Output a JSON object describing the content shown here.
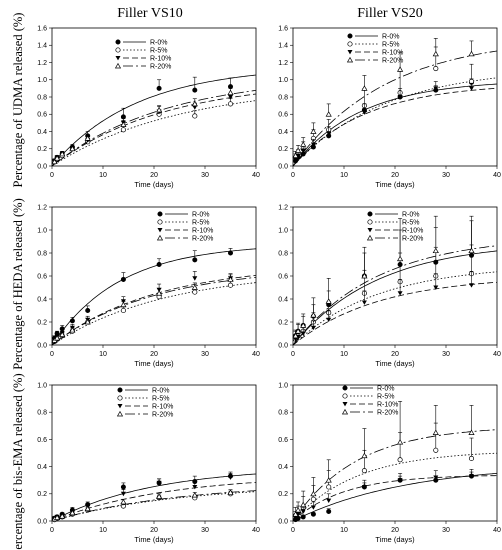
{
  "column_titles": [
    "Filler VS10",
    "Filler VS20"
  ],
  "row_ylabels": [
    "Percentage of UDMA released (%)",
    "Percentage of HEDA released (%)",
    "Percentage of bis-EMA released (%)"
  ],
  "series_style": [
    {
      "name": "R-0%",
      "marker": "filled-circle",
      "dash": ""
    },
    {
      "name": "R-5%",
      "marker": "open-circle",
      "dash": "1.5,2"
    },
    {
      "name": "R-10%",
      "marker": "filled-triangle-down",
      "dash": "6,3"
    },
    {
      "name": "R-20%",
      "marker": "open-triangle-up",
      "dash": "10,3,2,3"
    }
  ],
  "chart_data": [
    {
      "type": "scatter",
      "panel": "UDMA / Filler VS10",
      "xlabel": "Time (days)",
      "xlim": [
        0,
        40
      ],
      "ylim": [
        0,
        1.6
      ],
      "xticks": [
        0,
        10,
        20,
        30,
        40
      ],
      "yticks": [
        0.0,
        0.2,
        0.4,
        0.6,
        0.8,
        1.0,
        1.2,
        1.4,
        1.6
      ],
      "x": [
        0.5,
        1,
        2,
        4,
        7,
        14,
        21,
        28,
        35
      ],
      "series": [
        {
          "name": "R-0%",
          "values": [
            0.06,
            0.1,
            0.14,
            0.22,
            0.35,
            0.57,
            0.9,
            0.88,
            0.92
          ],
          "errors": [
            0.02,
            0.02,
            0.03,
            0.03,
            0.05,
            0.1,
            0.1,
            0.15,
            0.1
          ],
          "fit": [
            1.16,
            0.06
          ]
        },
        {
          "name": "R-5%",
          "values": [
            0.05,
            0.08,
            0.12,
            0.2,
            0.28,
            0.42,
            0.6,
            0.58,
            0.72
          ],
          "errors": [
            0.02,
            0.02,
            0.02,
            0.03,
            0.04,
            0.06,
            0.05,
            0.06,
            0.06
          ],
          "fit": [
            0.95,
            0.04
          ]
        },
        {
          "name": "R-10%",
          "values": [
            0.06,
            0.1,
            0.14,
            0.2,
            0.3,
            0.5,
            0.63,
            0.68,
            0.8
          ],
          "errors": [
            0.02,
            0.02,
            0.03,
            0.03,
            0.04,
            0.05,
            0.06,
            0.05,
            0.04
          ],
          "fit": [
            1.0,
            0.045
          ]
        },
        {
          "name": "R-20%",
          "values": [
            0.05,
            0.09,
            0.14,
            0.2,
            0.32,
            0.48,
            0.65,
            0.72,
            0.85
          ],
          "errors": [
            0.02,
            0.02,
            0.03,
            0.03,
            0.04,
            0.05,
            0.05,
            0.06,
            0.05
          ],
          "fit": [
            1.05,
            0.045
          ]
        }
      ]
    },
    {
      "type": "scatter",
      "panel": "UDMA / Filler VS20",
      "xlabel": "Time (days)",
      "xlim": [
        0,
        40
      ],
      "ylim": [
        0,
        1.6
      ],
      "xticks": [
        0,
        10,
        20,
        30,
        40
      ],
      "yticks": [
        0.0,
        0.2,
        0.4,
        0.6,
        0.8,
        1.0,
        1.2,
        1.4,
        1.6
      ],
      "x": [
        0.5,
        1,
        2,
        4,
        7,
        14,
        21,
        28,
        35
      ],
      "series": [
        {
          "name": "R-0%",
          "values": [
            0.06,
            0.1,
            0.14,
            0.22,
            0.35,
            0.65,
            0.8,
            0.88,
            0.97
          ],
          "errors": [
            0.03,
            0.03,
            0.04,
            0.05,
            0.06,
            0.07,
            0.05,
            0.05,
            0.04
          ],
          "fit": [
            1.0,
            0.075
          ]
        },
        {
          "name": "R-5%",
          "values": [
            0.1,
            0.14,
            0.2,
            0.32,
            0.42,
            0.7,
            0.85,
            1.13,
            0.98
          ],
          "errors": [
            0.04,
            0.05,
            0.08,
            0.1,
            0.12,
            0.2,
            0.25,
            0.25,
            0.2
          ],
          "fit": [
            1.15,
            0.055
          ]
        },
        {
          "name": "R-10%",
          "values": [
            0.08,
            0.12,
            0.18,
            0.25,
            0.38,
            0.62,
            0.8,
            0.9,
            0.9
          ],
          "errors": [
            0.03,
            0.04,
            0.05,
            0.06,
            0.08,
            0.1,
            0.1,
            0.08,
            0.06
          ],
          "fit": [
            0.96,
            0.07
          ]
        },
        {
          "name": "R-20%",
          "values": [
            0.12,
            0.18,
            0.25,
            0.4,
            0.6,
            0.9,
            1.12,
            1.3,
            1.3
          ],
          "errors": [
            0.05,
            0.06,
            0.08,
            0.1,
            0.12,
            0.15,
            0.2,
            0.18,
            0.15
          ],
          "fit": [
            1.5,
            0.055
          ]
        }
      ]
    },
    {
      "type": "scatter",
      "panel": "HEDA / Filler VS10",
      "xlabel": "Time (days)",
      "xlim": [
        0,
        40
      ],
      "ylim": [
        0,
        1.2
      ],
      "xticks": [
        0,
        10,
        20,
        30,
        40
      ],
      "yticks": [
        0.0,
        0.2,
        0.4,
        0.6,
        0.8,
        1.0,
        1.2
      ],
      "x": [
        0.5,
        1,
        2,
        4,
        7,
        14,
        21,
        28,
        35
      ],
      "series": [
        {
          "name": "R-0%",
          "values": [
            0.06,
            0.1,
            0.14,
            0.21,
            0.3,
            0.57,
            0.7,
            0.74,
            0.8
          ],
          "errors": [
            0.02,
            0.02,
            0.03,
            0.03,
            0.04,
            0.06,
            0.05,
            0.08,
            0.04
          ],
          "fit": [
            0.88,
            0.075
          ]
        },
        {
          "name": "R-5%",
          "values": [
            0.03,
            0.05,
            0.08,
            0.12,
            0.2,
            0.3,
            0.42,
            0.46,
            0.52
          ],
          "errors": [
            0.01,
            0.01,
            0.02,
            0.02,
            0.03,
            0.03,
            0.03,
            0.04,
            0.04
          ],
          "fit": [
            0.65,
            0.045
          ]
        },
        {
          "name": "R-10%",
          "values": [
            0.04,
            0.07,
            0.1,
            0.15,
            0.22,
            0.38,
            0.48,
            0.58,
            0.58
          ],
          "errors": [
            0.01,
            0.02,
            0.02,
            0.03,
            0.03,
            0.04,
            0.05,
            0.06,
            0.04
          ],
          "fit": [
            0.7,
            0.05
          ]
        },
        {
          "name": "R-20%",
          "values": [
            0.04,
            0.06,
            0.09,
            0.13,
            0.2,
            0.35,
            0.45,
            0.5,
            0.57
          ],
          "errors": [
            0.01,
            0.02,
            0.02,
            0.02,
            0.03,
            0.03,
            0.04,
            0.04,
            0.04
          ],
          "fit": [
            0.68,
            0.05
          ]
        }
      ]
    },
    {
      "type": "scatter",
      "panel": "HEDA / Filler VS20",
      "xlabel": "Time (days)",
      "xlim": [
        0,
        40
      ],
      "ylim": [
        0,
        1.2
      ],
      "xticks": [
        0,
        10,
        20,
        30,
        40
      ],
      "yticks": [
        0.0,
        0.2,
        0.4,
        0.6,
        0.8,
        1.0,
        1.2
      ],
      "x": [
        0.5,
        1,
        2,
        4,
        7,
        14,
        21,
        28,
        35
      ],
      "series": [
        {
          "name": "R-0%",
          "values": [
            0.08,
            0.12,
            0.17,
            0.25,
            0.35,
            0.6,
            0.7,
            0.72,
            0.78
          ],
          "errors": [
            0.04,
            0.06,
            0.08,
            0.1,
            0.12,
            0.2,
            0.3,
            0.3,
            0.3
          ],
          "fit": [
            0.9,
            0.06
          ]
        },
        {
          "name": "R-5%",
          "values": [
            0.05,
            0.08,
            0.12,
            0.2,
            0.28,
            0.45,
            0.55,
            0.6,
            0.62
          ],
          "errors": [
            0.03,
            0.04,
            0.06,
            0.08,
            0.1,
            0.2,
            0.25,
            0.25,
            0.25
          ],
          "fit": [
            0.7,
            0.06
          ]
        },
        {
          "name": "R-10%",
          "values": [
            0.05,
            0.07,
            0.1,
            0.15,
            0.22,
            0.37,
            0.45,
            0.5,
            0.52
          ],
          "errors": [
            0.02,
            0.03,
            0.05,
            0.06,
            0.08,
            0.1,
            0.12,
            0.12,
            0.12
          ],
          "fit": [
            0.6,
            0.06
          ]
        },
        {
          "name": "R-20%",
          "values": [
            0.08,
            0.12,
            0.17,
            0.26,
            0.38,
            0.6,
            0.75,
            0.82,
            0.82
          ],
          "errors": [
            0.05,
            0.07,
            0.1,
            0.15,
            0.2,
            0.25,
            0.35,
            0.3,
            0.3
          ],
          "fit": [
            0.95,
            0.06
          ]
        }
      ]
    },
    {
      "type": "scatter",
      "panel": "bis-EMA / Filler VS10",
      "xlabel": "Time (days)",
      "xlim": [
        0,
        40
      ],
      "ylim": [
        0,
        1.0
      ],
      "xticks": [
        0,
        10,
        20,
        30,
        40
      ],
      "yticks": [
        0.0,
        0.2,
        0.4,
        0.6,
        0.8,
        1.0
      ],
      "x": [
        0.5,
        1,
        2,
        4,
        7,
        14,
        21,
        28,
        35
      ],
      "series": [
        {
          "name": "R-0%",
          "values": [
            0.02,
            0.03,
            0.05,
            0.08,
            0.12,
            0.25,
            0.28,
            0.29,
            0.33
          ],
          "errors": [
            0.01,
            0.01,
            0.01,
            0.02,
            0.02,
            0.03,
            0.03,
            0.04,
            0.03
          ],
          "fit": [
            0.4,
            0.05
          ]
        },
        {
          "name": "R-5%",
          "values": [
            0.01,
            0.02,
            0.03,
            0.05,
            0.08,
            0.11,
            0.17,
            0.17,
            0.2
          ],
          "errors": [
            0.005,
            0.01,
            0.01,
            0.01,
            0.02,
            0.02,
            0.02,
            0.02,
            0.02
          ],
          "fit": [
            0.27,
            0.04
          ]
        },
        {
          "name": "R-10%",
          "values": [
            0.02,
            0.03,
            0.04,
            0.07,
            0.11,
            0.2,
            0.28,
            0.25,
            0.32
          ],
          "errors": [
            0.01,
            0.01,
            0.01,
            0.02,
            0.02,
            0.03,
            0.03,
            0.04,
            0.03
          ],
          "fit": [
            0.34,
            0.045
          ]
        },
        {
          "name": "R-20%",
          "values": [
            0.015,
            0.025,
            0.035,
            0.06,
            0.09,
            0.14,
            0.18,
            0.19,
            0.21
          ],
          "errors": [
            0.005,
            0.01,
            0.01,
            0.01,
            0.02,
            0.02,
            0.02,
            0.02,
            0.02
          ],
          "fit": [
            0.28,
            0.04
          ]
        }
      ]
    },
    {
      "type": "scatter",
      "panel": "bis-EMA / Filler VS20",
      "xlabel": "Time (days)",
      "xlim": [
        0,
        40
      ],
      "ylim": [
        0,
        1.0
      ],
      "xticks": [
        0,
        10,
        20,
        30,
        40
      ],
      "yticks": [
        0.0,
        0.2,
        0.4,
        0.6,
        0.8,
        1.0
      ],
      "x": [
        0.5,
        1,
        2,
        4,
        7,
        14,
        21,
        28,
        35
      ],
      "series": [
        {
          "name": "R-0%",
          "values": [
            0.01,
            0.02,
            0.03,
            0.05,
            0.07,
            0.25,
            0.3,
            0.3,
            0.33
          ],
          "errors": [
            0.005,
            0.01,
            0.01,
            0.01,
            0.02,
            0.03,
            0.03,
            0.03,
            0.03
          ],
          "fit": [
            0.42,
            0.045
          ]
        },
        {
          "name": "R-5%",
          "values": [
            0.04,
            0.06,
            0.1,
            0.16,
            0.25,
            0.37,
            0.45,
            0.52,
            0.46
          ],
          "errors": [
            0.03,
            0.05,
            0.08,
            0.1,
            0.12,
            0.15,
            0.2,
            0.2,
            0.15
          ],
          "fit": [
            0.52,
            0.08
          ]
        },
        {
          "name": "R-10%",
          "values": [
            0.03,
            0.05,
            0.07,
            0.1,
            0.15,
            0.25,
            0.3,
            0.32,
            0.33
          ],
          "errors": [
            0.01,
            0.02,
            0.03,
            0.04,
            0.05,
            0.05,
            0.05,
            0.05,
            0.05
          ],
          "fit": [
            0.34,
            0.1
          ]
        },
        {
          "name": "R-20%",
          "values": [
            0.05,
            0.08,
            0.12,
            0.2,
            0.3,
            0.48,
            0.58,
            0.65,
            0.65
          ],
          "errors": [
            0.05,
            0.06,
            0.1,
            0.12,
            0.15,
            0.2,
            0.3,
            0.2,
            0.2
          ],
          "fit": [
            0.7,
            0.08
          ]
        }
      ]
    }
  ]
}
